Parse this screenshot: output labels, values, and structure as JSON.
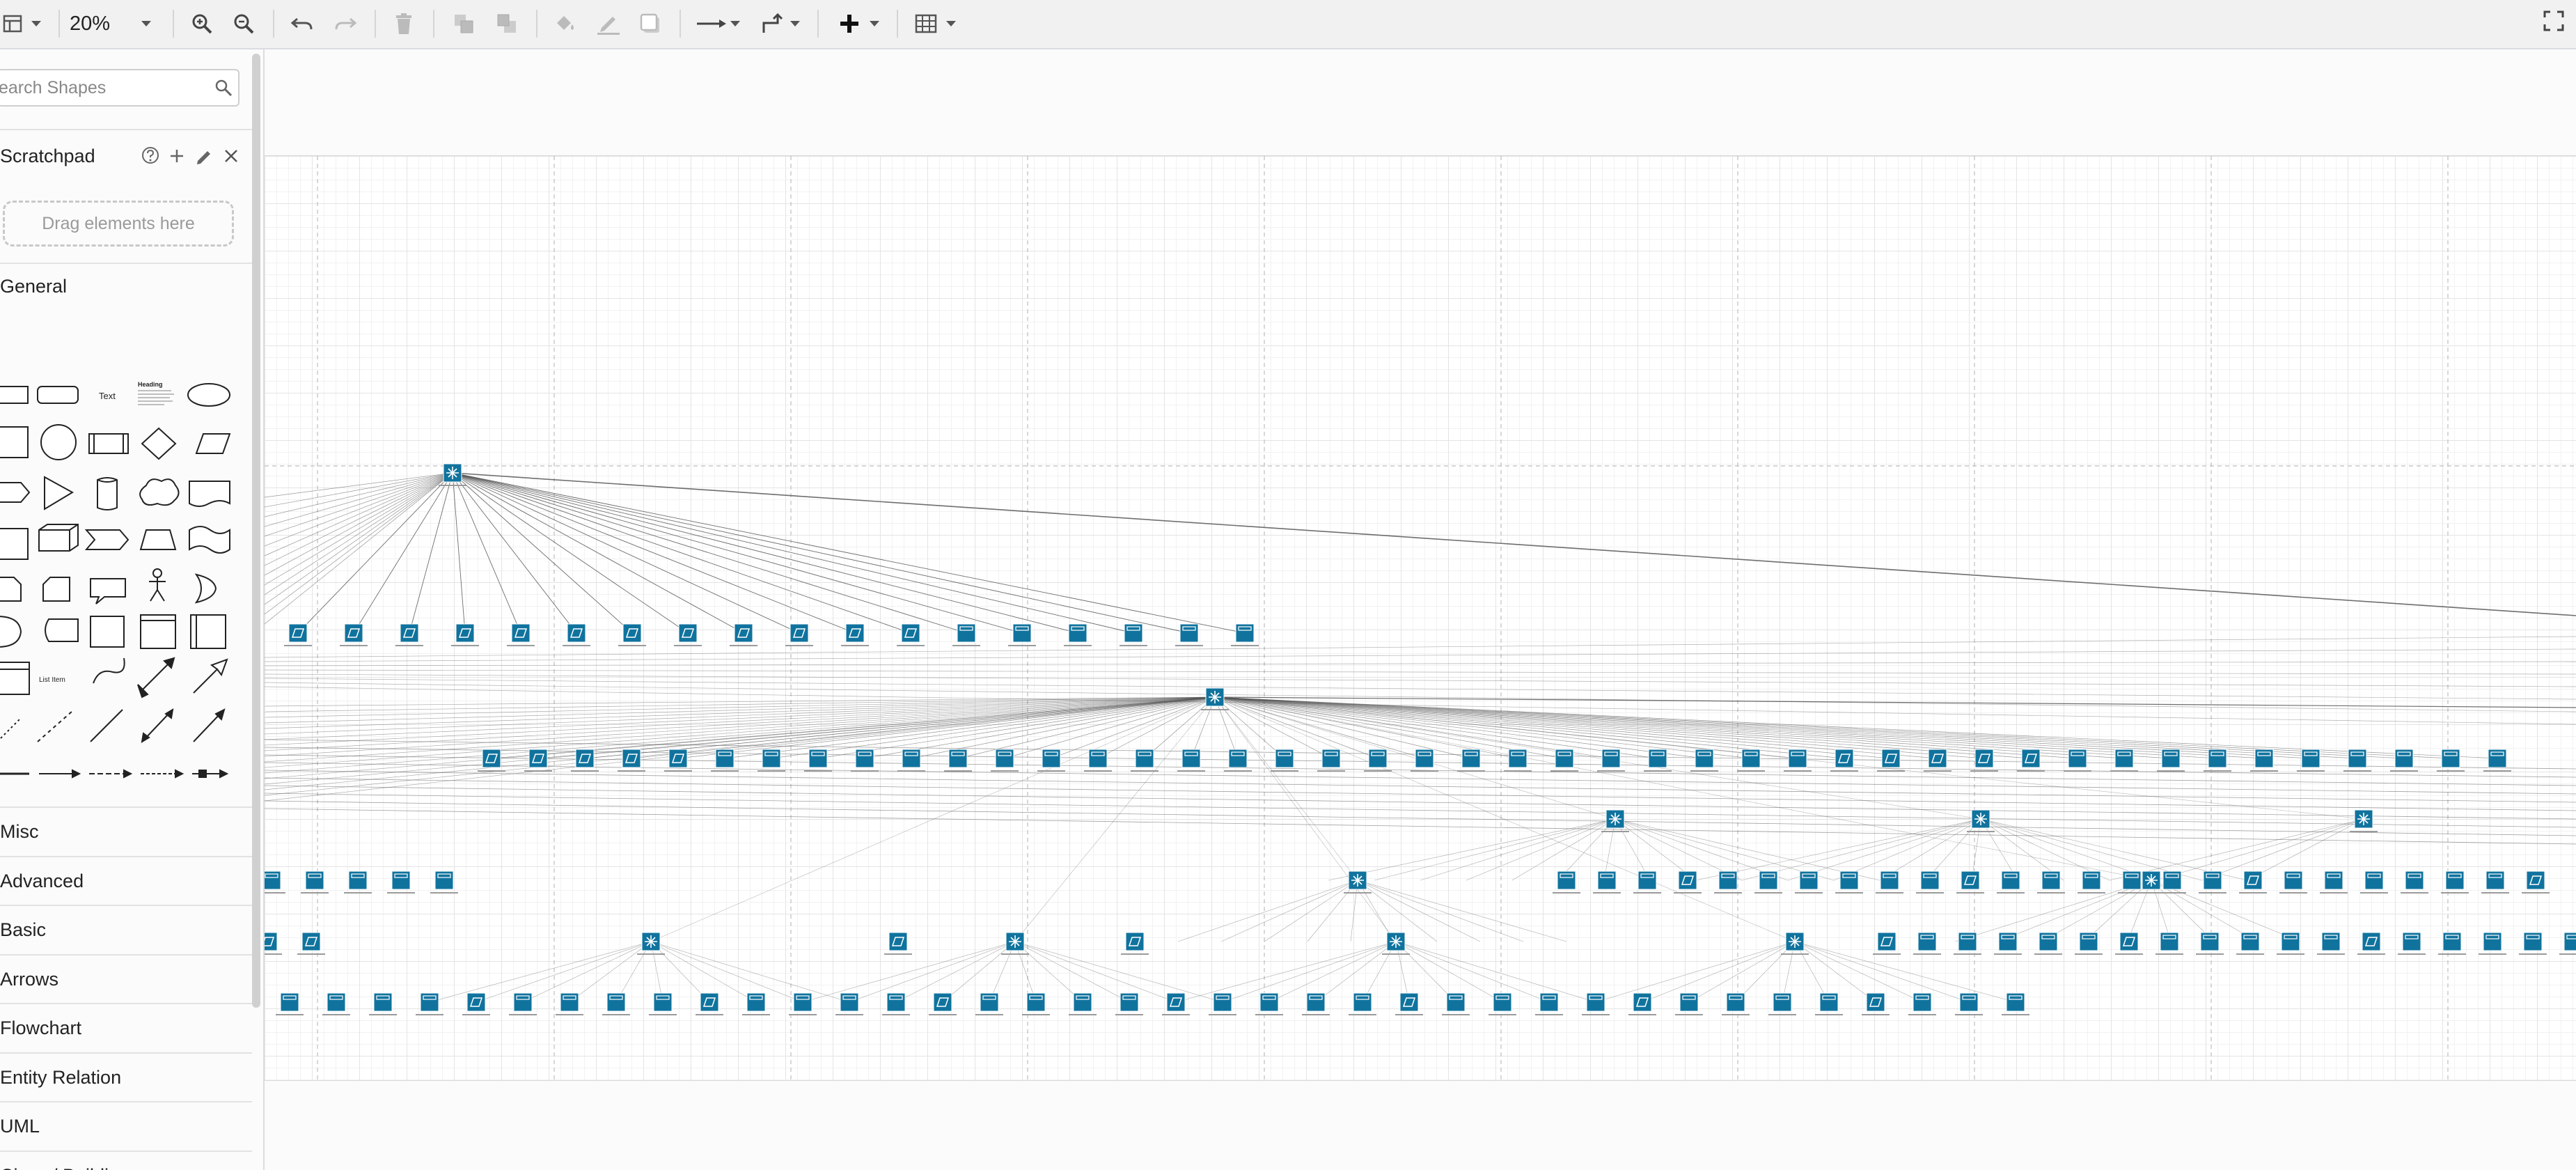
{
  "toolbar": {
    "zoom": "20%",
    "icons": [
      "layout-icon",
      "chevron-down-icon",
      "zoom-in-icon",
      "zoom-out-icon",
      "undo-icon",
      "redo-icon",
      "delete-icon",
      "to-front-icon",
      "to-back-icon",
      "fill-color-icon",
      "line-color-icon",
      "shadow-icon",
      "connection-icon",
      "waypoints-icon",
      "insert-icon",
      "table-icon",
      "fullscreen-icon"
    ]
  },
  "sidebar": {
    "search_placeholder": "earch Shapes",
    "scratchpad": {
      "title": "Scratchpad",
      "drop_hint": "Drag elements here"
    },
    "general": {
      "title": "General",
      "text_shape_label": "Text",
      "heading_shape_label": "Heading",
      "list_item_label": "List Item"
    },
    "categories": [
      "Misc",
      "Advanced",
      "Basic",
      "Arrows",
      "Flowchart",
      "Entity Relation",
      "UML",
      "Cisco / Buildings"
    ]
  },
  "canvas": {
    "diagram": "network-topology",
    "colors": {
      "device": "#10739e",
      "grid": "#e4e4e4",
      "link": "#555555"
    }
  }
}
